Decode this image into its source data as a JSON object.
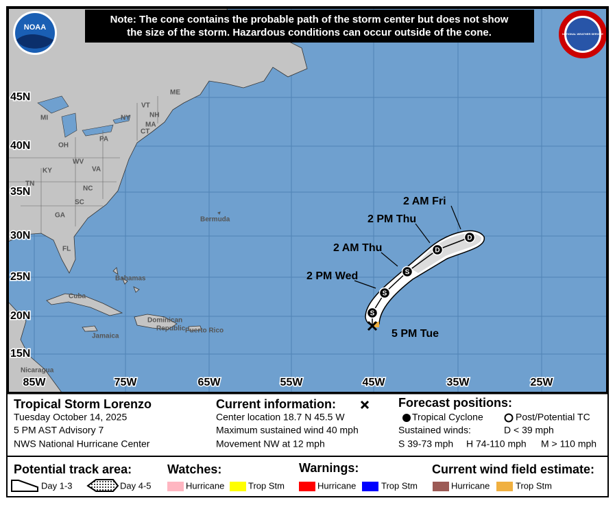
{
  "note": [
    "Note: The cone contains the probable path of the storm center but does not show",
    "the size of the storm. Hazardous conditions can occur outside of the cone."
  ],
  "logos": {
    "noaa": "NOAA",
    "nws": "NATIONAL WEATHER SERVICE"
  },
  "map": {
    "lat_labels": [
      "45N",
      "40N",
      "35N",
      "30N",
      "25N",
      "20N",
      "15N"
    ],
    "lon_labels": [
      "85W",
      "75W",
      "65W",
      "55W",
      "45W",
      "35W",
      "25W"
    ],
    "places": [
      "ME",
      "VT",
      "NH",
      "MI",
      "NY",
      "MA",
      "CT",
      "PA",
      "OH",
      "WV",
      "VA",
      "KY",
      "TN",
      "NC",
      "SC",
      "GA",
      "FL",
      "Bermuda",
      "Bahamas",
      "Cuba",
      "Dominican",
      "Republic",
      "Puerto Rico",
      "Jamaica",
      "Nicaragua"
    ]
  },
  "track": {
    "current": "5 PM Tue",
    "points": [
      {
        "symbol": "S"
      },
      {
        "symbol": "S",
        "time": "2 PM Wed"
      },
      {
        "symbol": "S",
        "time": "2 AM Thu"
      },
      {
        "symbol": "D",
        "time": "2 PM Thu"
      },
      {
        "symbol": "D",
        "time": "2 AM Fri"
      }
    ]
  },
  "panel": {
    "storm": "Tropical Storm Lorenzo",
    "date": "Tuesday October 14, 2025",
    "advisory": "5 PM AST Advisory 7",
    "center": "NWS National Hurricane Center",
    "current_title": "Current information:",
    "location": "Center location 18.7 N 45.5 W",
    "wind": "Maximum sustained wind 40 mph",
    "movement": "Movement NW at 12 mph",
    "forecast_title": "Forecast positions:",
    "tropical": "Tropical Cyclone",
    "post": "Post/Potential TC",
    "sustained": "Sustained winds:",
    "d": "D < 39 mph",
    "s": "S 39-73 mph",
    "h": "H 74-110 mph",
    "m": "M > 110 mph"
  },
  "legend": {
    "track_area": "Potential track area:",
    "day13": "Day 1-3",
    "day45": "Day 4-5",
    "watches": "Watches:",
    "warnings": "Warnings:",
    "wind_field": "Current wind field estimate:",
    "watch_items": [
      "Hurricane",
      "Trop Stm"
    ],
    "warning_items": [
      "Hurricane",
      "Trop Stm"
    ],
    "wind_items": [
      "Hurricane",
      "Trop Stm"
    ]
  }
}
